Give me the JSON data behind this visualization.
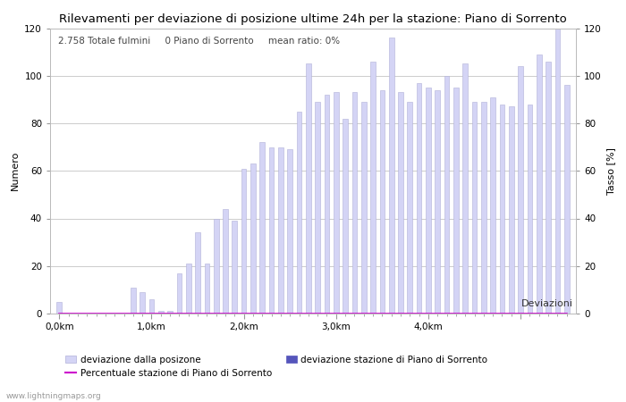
{
  "title": "Rilevamenti per deviazione di posizione ultime 24h per la stazione: Piano di Sorrento",
  "xlabel": "Deviazioni",
  "ylabel_left": "Numero",
  "ylabel_right": "Tasso [%]",
  "annotation": "2.758 Totale fulmini     0 Piano di Sorrento     mean ratio: 0%",
  "watermark": "www.lightningmaps.org",
  "bar_values": [
    5,
    0,
    0,
    0,
    0,
    0,
    0,
    0,
    11,
    9,
    6,
    1,
    1,
    17,
    21,
    34,
    21,
    40,
    44,
    39,
    61,
    63,
    72,
    70,
    70,
    69,
    85,
    105,
    89,
    92,
    93,
    82,
    93,
    89,
    106,
    94,
    116,
    93,
    89,
    97,
    95,
    94,
    100,
    95,
    105,
    89,
    89,
    91,
    88,
    87,
    104,
    88,
    109,
    106,
    120,
    96
  ],
  "bar_color": "#d4d4f5",
  "bar_edge_color": "#b0b0d8",
  "station_bar_values": [
    0,
    0,
    0,
    0,
    0,
    0,
    0,
    0,
    0,
    0,
    0,
    0,
    0,
    0,
    0,
    0,
    0,
    0,
    0,
    0,
    0,
    0,
    0,
    0,
    0,
    0,
    0,
    0,
    0,
    0,
    0,
    0,
    0,
    0,
    0,
    0,
    0,
    0,
    0,
    0,
    0,
    0,
    0,
    0,
    0,
    0,
    0,
    0,
    0,
    0,
    0,
    0,
    0,
    0,
    0,
    0
  ],
  "station_bar_color": "#5555bb",
  "line_values": [
    0,
    0,
    0,
    0,
    0,
    0,
    0,
    0,
    0,
    0,
    0,
    0,
    0,
    0,
    0,
    0,
    0,
    0,
    0,
    0,
    0,
    0,
    0,
    0,
    0,
    0,
    0,
    0,
    0,
    0,
    0,
    0,
    0,
    0,
    0,
    0,
    0,
    0,
    0,
    0,
    0,
    0,
    0,
    0,
    0,
    0,
    0,
    0,
    0,
    0,
    0,
    0,
    0,
    0,
    0,
    0
  ],
  "line_color": "#cc00cc",
  "ylim": [
    0,
    120
  ],
  "n_bars": 56,
  "x_tick_positions": [
    0,
    10,
    20,
    30,
    40,
    50
  ],
  "x_tick_labels": [
    "0,0km",
    "1,0km",
    "2,0km",
    "3,0km",
    "4,0km",
    ""
  ],
  "grid_color": "#cccccc",
  "bg_color": "#ffffff",
  "legend_items": [
    {
      "label": "deviazione dalla posizone",
      "color": "#d4d4f5",
      "edge": "#b0b0d8",
      "type": "bar"
    },
    {
      "label": "deviazione stazione di Piano di Sorrento",
      "color": "#5555bb",
      "edge": "#5555bb",
      "type": "bar"
    },
    {
      "label": "Percentuale stazione di Piano di Sorrento",
      "color": "#cc00cc",
      "type": "line"
    }
  ],
  "title_fontsize": 9.5,
  "axis_fontsize": 8,
  "tick_fontsize": 7.5,
  "annotation_fontsize": 7.5
}
